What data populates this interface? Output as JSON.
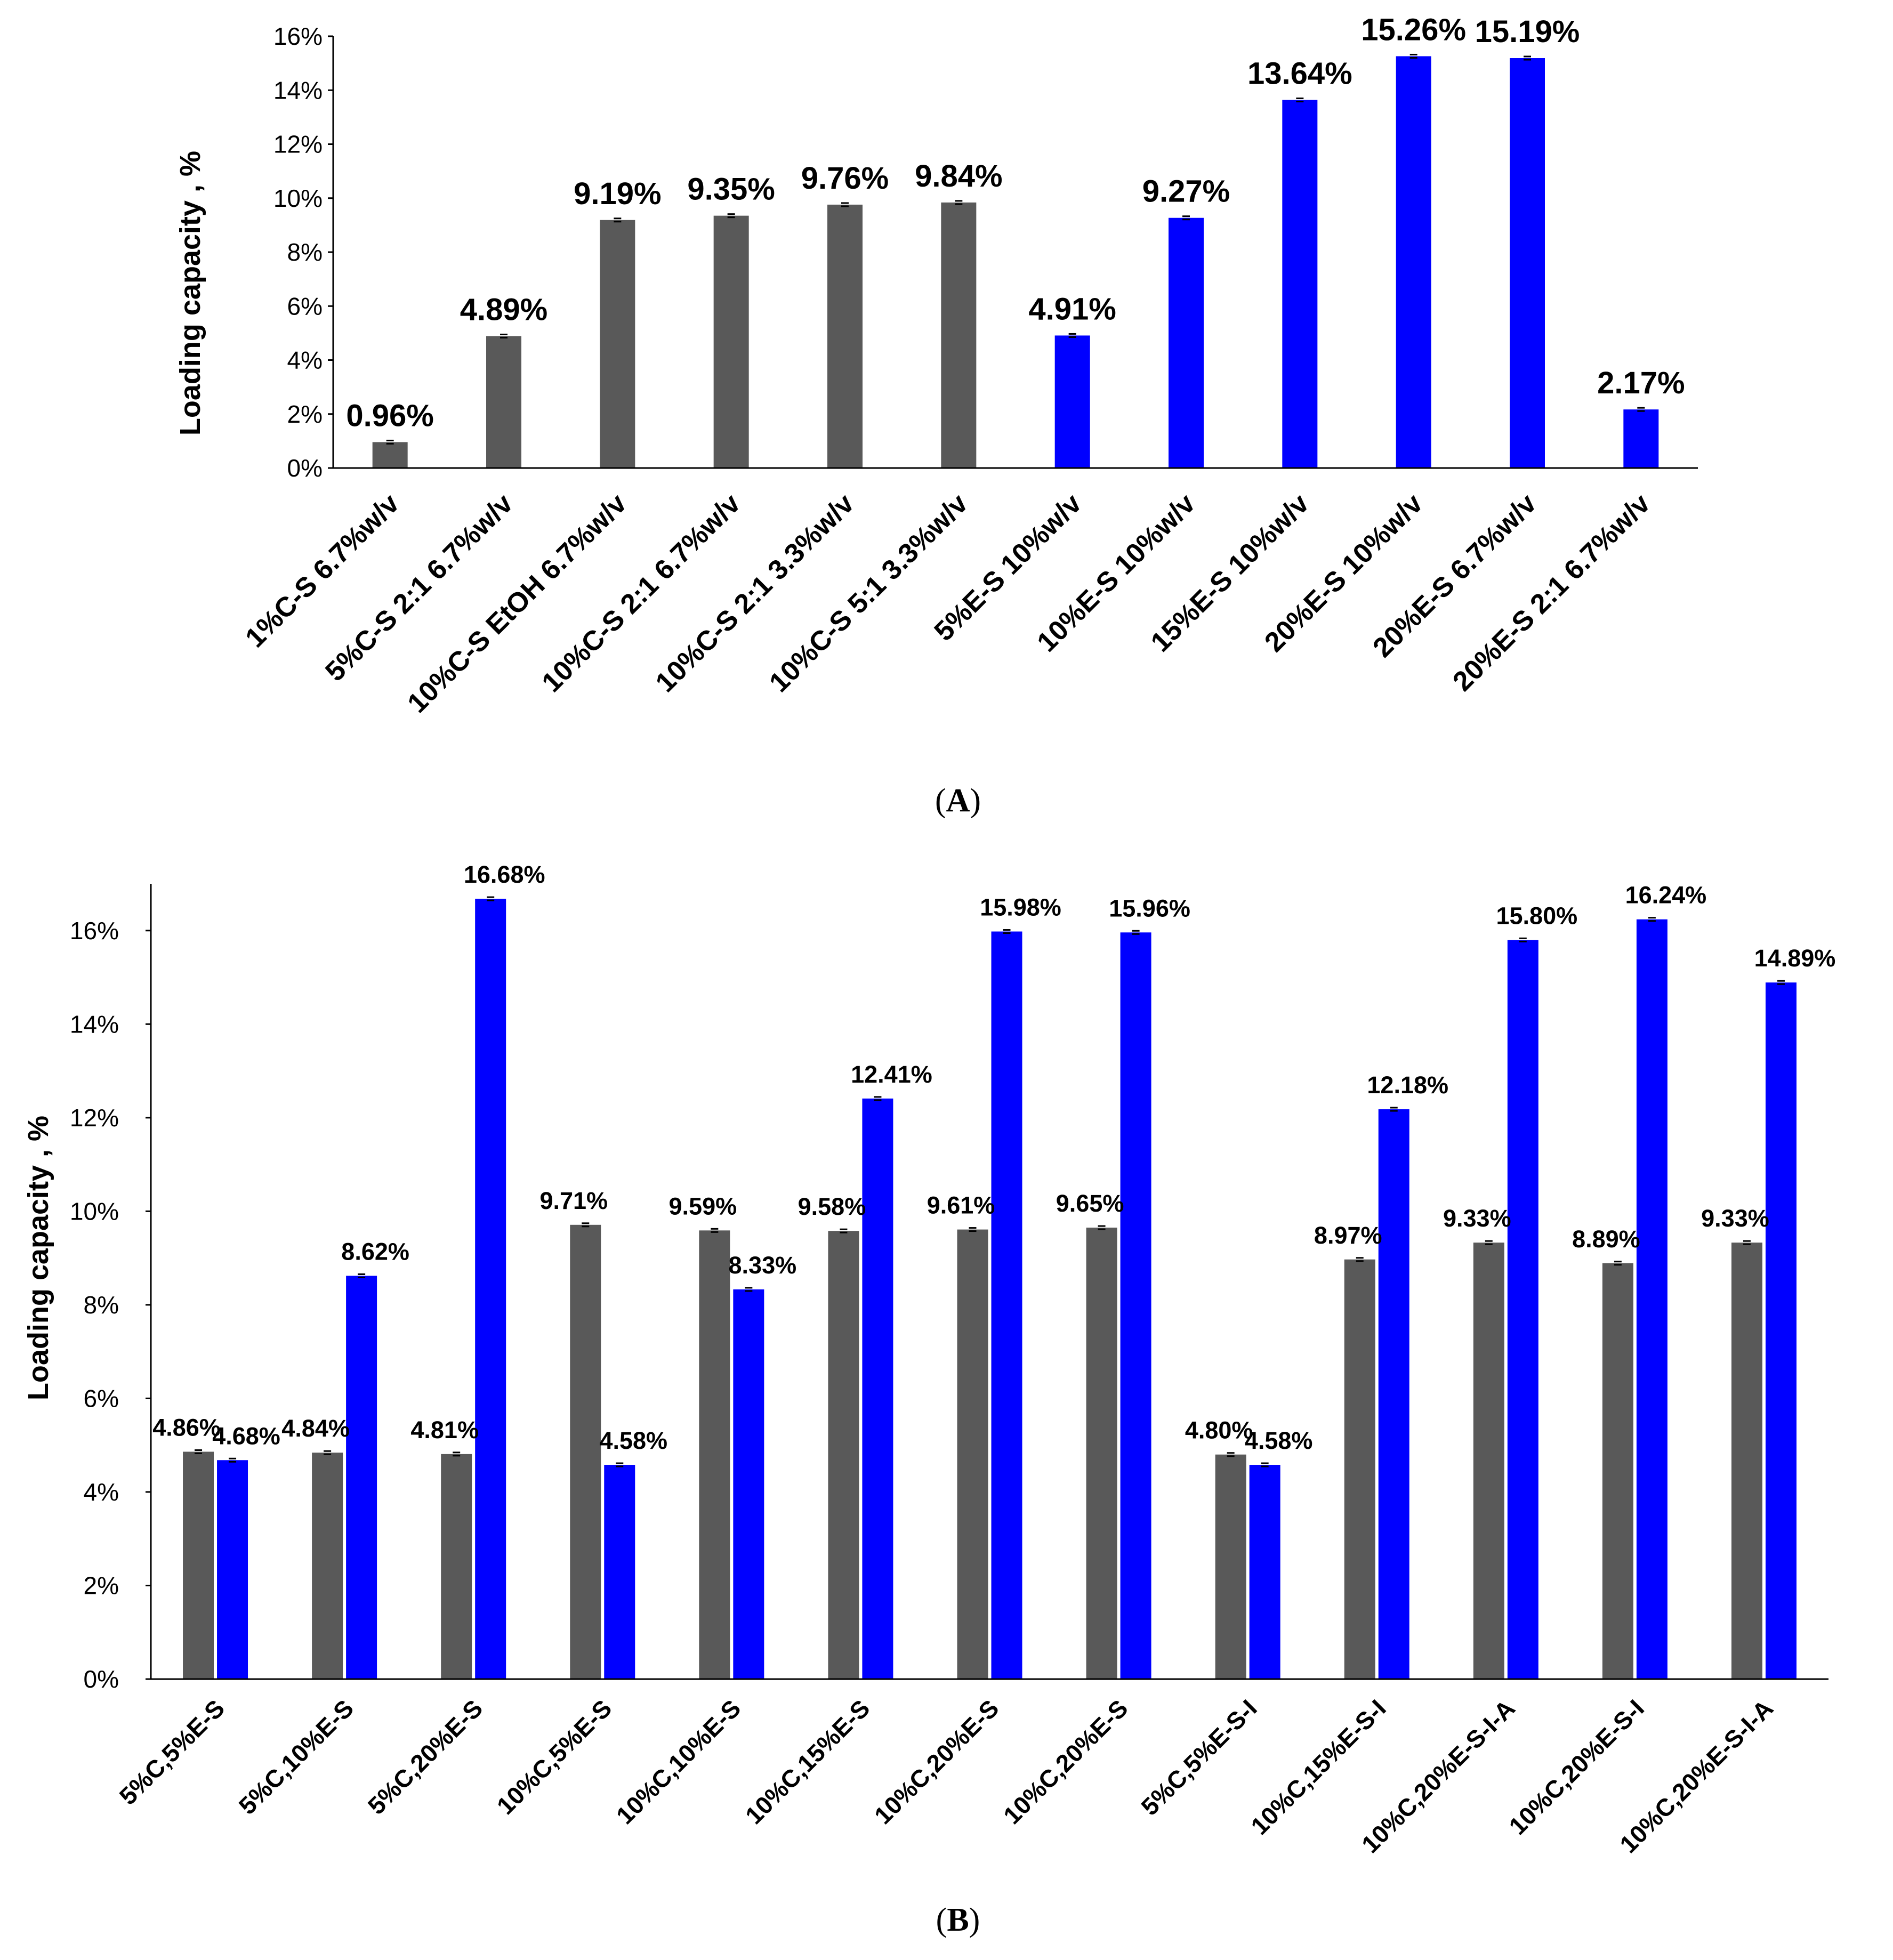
{
  "colors": {
    "gray": "#595959",
    "blue": "#0000ff",
    "axis": "#000000"
  },
  "chart_data": [
    {
      "type": "bar",
      "panel_label": "A",
      "ylabel": "Loading capacity , %",
      "xlabel": "",
      "ylim": [
        0,
        16
      ],
      "yticks": [
        "0%",
        "2%",
        "4%",
        "6%",
        "8%",
        "10%",
        "12%",
        "14%",
        "16%"
      ],
      "grid": false,
      "categories": [
        "1%C-S 6.7%w/v",
        "5%C-S 2:1 6.7%w/v",
        "10%C-S EtOH 6.7%w/v",
        "10%C-S 2:1 6.7%w/v",
        "10%C-S 2:1 3.3%w/v",
        "10%C-S 5:1 3.3%w/v",
        "5%E-S 10%w/v",
        "10%E-S 10%w/v",
        "15%E-S 10%w/v",
        "20%E-S 10%w/v",
        "20%E-S 6.7%w/v",
        "20%E-S 2:1 6.7%w/v"
      ],
      "values": [
        0.96,
        4.89,
        9.19,
        9.35,
        9.76,
        9.84,
        4.91,
        9.27,
        13.64,
        15.26,
        15.19,
        2.17
      ],
      "labels": [
        "0.96%",
        "4.89%",
        "9.19%",
        "9.35%",
        "9.76%",
        "9.84%",
        "4.91%",
        "9.27%",
        "13.64%",
        "15.26%",
        "15.19%",
        "2.17%"
      ],
      "bar_colors": [
        "gray",
        "gray",
        "gray",
        "gray",
        "gray",
        "gray",
        "blue",
        "blue",
        "blue",
        "blue",
        "blue",
        "blue"
      ]
    },
    {
      "type": "bar",
      "panel_label": "B",
      "ylabel": "Loading capacity , %",
      "xlabel": "",
      "ylim": [
        0,
        17
      ],
      "yticks": [
        "0%",
        "2%",
        "4%",
        "6%",
        "8%",
        "10%",
        "12%",
        "14%",
        "16%"
      ],
      "grid": false,
      "categories": [
        "5%C,5%E-S",
        "5%C,10%E-S",
        "5%C,20%E-S",
        "10%C,5%E-S",
        "10%C,10%E-S",
        "10%C,15%E-S",
        "10%C,20%E-S",
        "10%C,20%E-S",
        "5%C,5%E-S-I",
        "10%C,15%E-S-I",
        "10%C,20%E-S-I-A",
        "10%C,20%E-S-I",
        "10%C,20%E-S-I-A"
      ],
      "series": [
        {
          "name": "gray",
          "values": [
            4.86,
            4.84,
            4.81,
            9.71,
            9.59,
            9.58,
            9.61,
            9.65,
            4.8,
            8.97,
            9.33,
            8.89,
            9.33
          ],
          "labels": [
            "4.86%",
            "4.84%",
            "4.81%",
            "9.71%",
            "9.59%",
            "9.58%",
            "9.61%",
            "9.65%",
            "4.80%",
            "8.97%",
            "9.33%",
            "8.89%",
            "9.33%"
          ]
        },
        {
          "name": "blue",
          "values": [
            4.68,
            8.62,
            16.68,
            4.58,
            8.33,
            12.41,
            15.98,
            15.96,
            4.58,
            12.18,
            15.8,
            16.24,
            14.89
          ],
          "labels": [
            "4.68%",
            "8.62%",
            "16.68%",
            "4.58%",
            "8.33%",
            "12.41%",
            "15.98%",
            "15.96%",
            "4.58%",
            "12.18%",
            "15.80%",
            "16.24%",
            "14.89%"
          ]
        }
      ]
    }
  ]
}
